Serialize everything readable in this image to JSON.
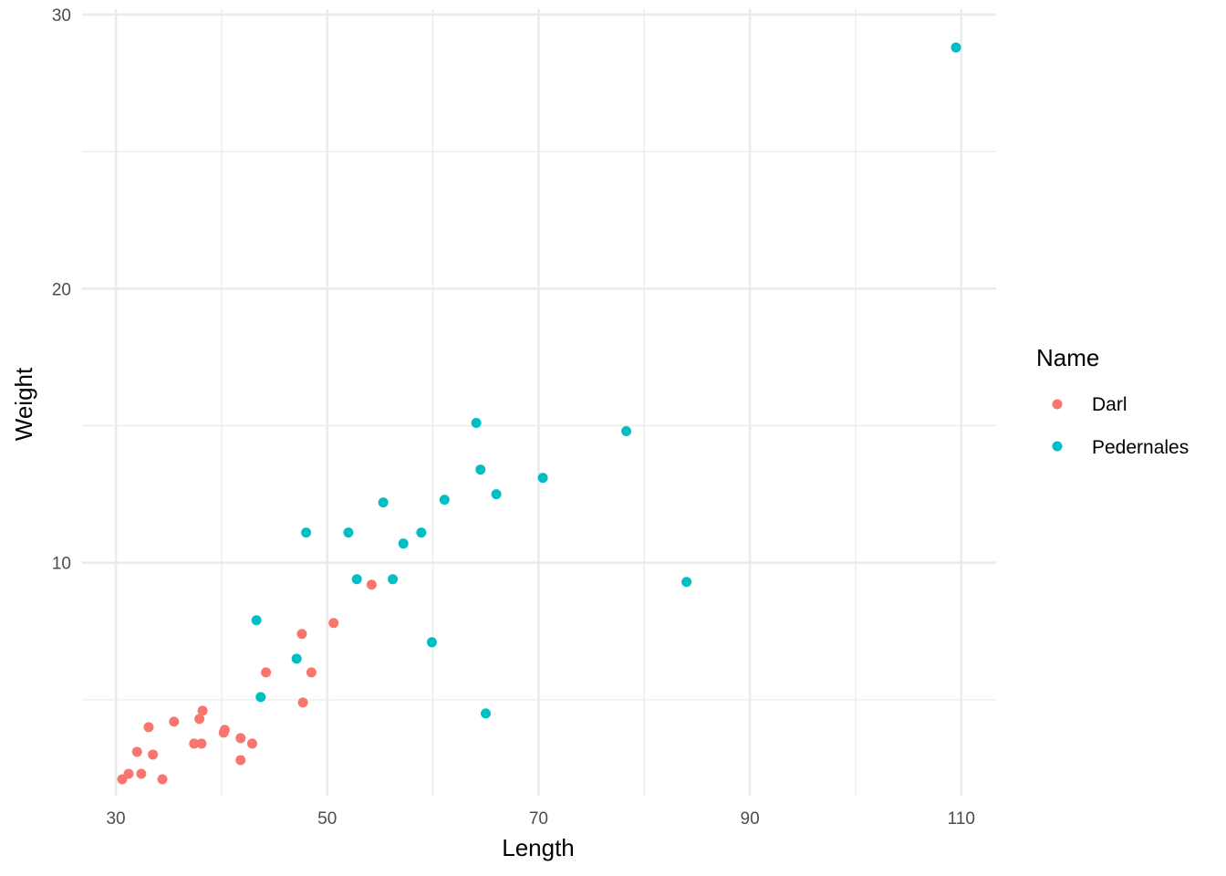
{
  "chart_data": {
    "type": "scatter",
    "title": "",
    "xlabel": "Length",
    "ylabel": "Weight",
    "xlim": [
      26.8,
      113.3
    ],
    "ylim": [
      1.5,
      30.2
    ],
    "x_ticks": [
      30,
      50,
      70,
      90,
      110
    ],
    "y_ticks": [
      10,
      20,
      30
    ],
    "grid": true,
    "legend": {
      "title": "Name",
      "placement": "right"
    },
    "series": [
      {
        "name": "Darl",
        "color": "#F8766D",
        "points": [
          [
            30.6,
            2.1
          ],
          [
            31.2,
            2.3
          ],
          [
            32.0,
            3.1
          ],
          [
            32.4,
            2.3
          ],
          [
            33.1,
            4.0
          ],
          [
            33.5,
            3.0
          ],
          [
            34.4,
            2.1
          ],
          [
            35.5,
            4.2
          ],
          [
            37.4,
            3.4
          ],
          [
            37.9,
            4.3
          ],
          [
            38.1,
            3.4
          ],
          [
            38.2,
            4.6
          ],
          [
            40.2,
            3.8
          ],
          [
            40.3,
            3.9
          ],
          [
            41.8,
            3.6
          ],
          [
            41.8,
            2.8
          ],
          [
            42.9,
            3.4
          ],
          [
            44.2,
            6.0
          ],
          [
            47.6,
            7.4
          ],
          [
            47.7,
            4.9
          ],
          [
            48.5,
            6.0
          ],
          [
            50.6,
            7.8
          ],
          [
            54.2,
            9.2
          ]
        ]
      },
      {
        "name": "Pedernales",
        "color": "#00BFC4",
        "points": [
          [
            43.3,
            7.9
          ],
          [
            43.7,
            5.1
          ],
          [
            47.1,
            6.5
          ],
          [
            48.0,
            11.1
          ],
          [
            52.0,
            11.1
          ],
          [
            52.8,
            9.4
          ],
          [
            55.3,
            12.2
          ],
          [
            56.2,
            9.4
          ],
          [
            57.2,
            10.7
          ],
          [
            58.9,
            11.1
          ],
          [
            59.9,
            7.1
          ],
          [
            61.1,
            12.3
          ],
          [
            64.1,
            15.1
          ],
          [
            64.5,
            13.4
          ],
          [
            65.0,
            4.5
          ],
          [
            66.0,
            12.5
          ],
          [
            70.4,
            13.1
          ],
          [
            78.3,
            14.8
          ],
          [
            84.0,
            9.3
          ],
          [
            109.5,
            28.8
          ]
        ]
      }
    ]
  }
}
